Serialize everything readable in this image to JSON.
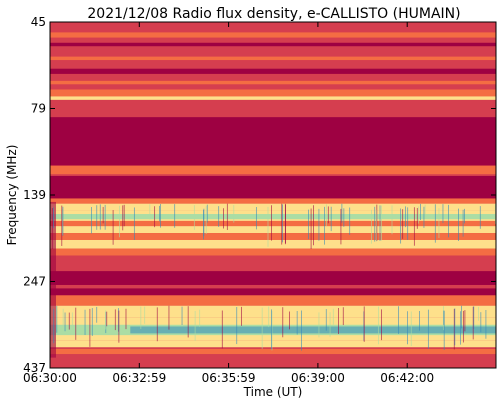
{
  "chart_data": {
    "type": "heatmap",
    "title": "2021/12/08  Radio flux density, e-CALLISTO (HUMAIN)",
    "xlabel": "Time (UT)",
    "ylabel": "Frequency (MHz)",
    "x_ticks": [
      "06:30:00",
      "06:32:59",
      "06:35:59",
      "06:39:00",
      "06:42:00"
    ],
    "y_ticks": [
      "45",
      "79",
      "139",
      "247",
      "437"
    ],
    "y_scale": "log",
    "xlim": [
      "06:30:00",
      "06:45:00"
    ],
    "ylim": [
      437,
      45
    ],
    "colormap": "Spectral",
    "colors": {
      "saturated_band": "#9e0142",
      "high": "#d53e4f",
      "mid": "#f46d43",
      "low": "#fee08b",
      "lower": "#abdda4",
      "lowest": "#3288bd"
    }
  }
}
